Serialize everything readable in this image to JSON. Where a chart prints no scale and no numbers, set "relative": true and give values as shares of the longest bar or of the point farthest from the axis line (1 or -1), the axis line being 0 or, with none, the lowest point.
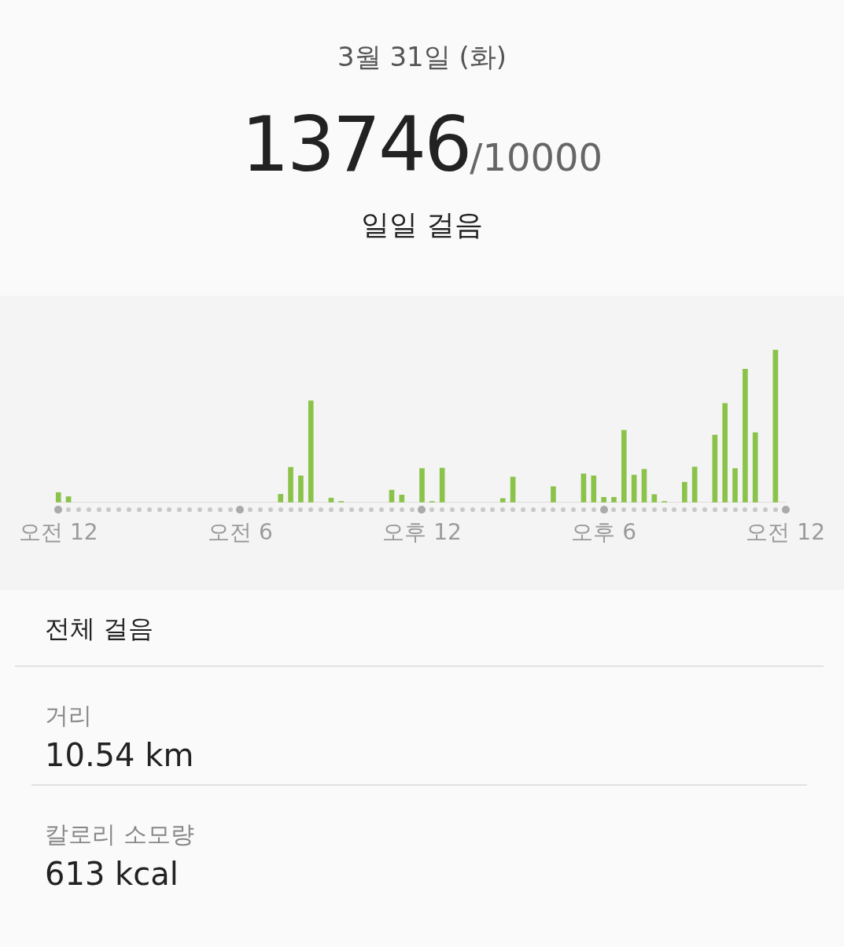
{
  "chart_data": {
    "type": "bar",
    "relative": true,
    "title": "3월 31일 (화)",
    "annotations": [
      "13746",
      "/10000",
      "일일 걸음",
      "전체 걸음",
      "거리",
      "10.54 km",
      "칼로리 소모량",
      "613 kcal"
    ],
    "categories": [
      "오전 12",
      null,
      null,
      null,
      null,
      null,
      null,
      null,
      null,
      null,
      null,
      null,
      null,
      null,
      null,
      null,
      null,
      null,
      "오전 6",
      null,
      null,
      null,
      null,
      null,
      null,
      null,
      null,
      null,
      null,
      null,
      null,
      null,
      null,
      null,
      null,
      null,
      "오후 12",
      null,
      null,
      null,
      null,
      null,
      null,
      null,
      null,
      null,
      null,
      null,
      null,
      null,
      null,
      null,
      null,
      null,
      "오후 6",
      null,
      null,
      null,
      null,
      null,
      null,
      null,
      null,
      null,
      null,
      null,
      null,
      null,
      null,
      null,
      null,
      null,
      "오전 12"
    ],
    "values": [
      0.063,
      0.036,
      null,
      null,
      null,
      null,
      null,
      null,
      null,
      null,
      null,
      null,
      null,
      null,
      null,
      null,
      null,
      null,
      null,
      null,
      null,
      null,
      0.052,
      0.229,
      0.173,
      0.666,
      null,
      0.027,
      0.005,
      null,
      null,
      null,
      null,
      0.079,
      0.047,
      null,
      0.221,
      0.005,
      0.224,
      null,
      null,
      null,
      null,
      null,
      0.024,
      0.165,
      null,
      null,
      null,
      0.102,
      null,
      null,
      0.186,
      0.173,
      0.032,
      0.032,
      0.472,
      0.178,
      0.216,
      0.05,
      0.005,
      null,
      0.131,
      0.231,
      null,
      0.441,
      0.649,
      0.221,
      0.874,
      0.457,
      null,
      1,
      null
    ],
    "color": "#8bc34a",
    "grid": false,
    "legend": false
  }
}
